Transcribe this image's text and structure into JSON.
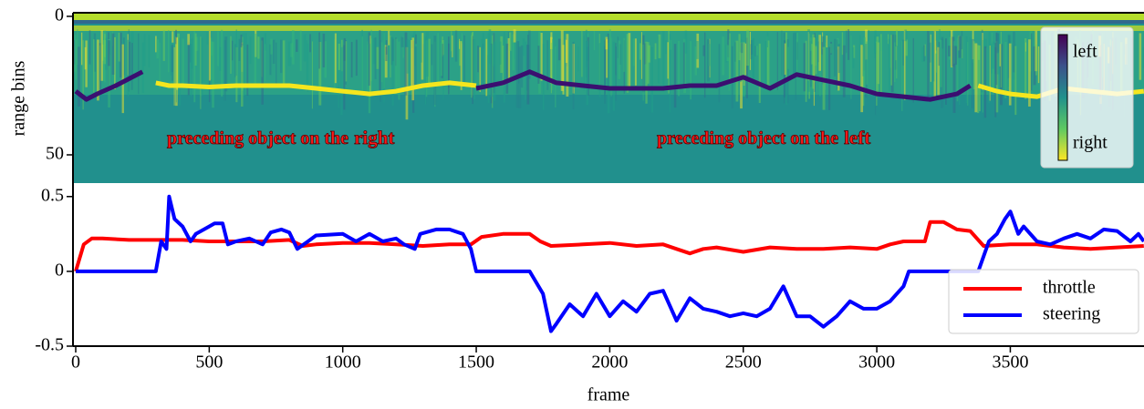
{
  "chart_data": [
    {
      "type": "heatmap",
      "ylabel": "range bins",
      "ylim": [
        60.2,
        -1.3
      ],
      "yticks": [
        0,
        50
      ],
      "xlim": [
        0,
        4000
      ],
      "annotations": [
        {
          "text": "preceding object on the",
          "emphasis": "right"
        },
        {
          "text": "preceding object on the",
          "emphasis": "left"
        }
      ],
      "colorbar": {
        "labels": [
          "left",
          "right"
        ],
        "colors": [
          "#440154",
          "#3b528b",
          "#21918c",
          "#5ec962",
          "#fde725"
        ]
      },
      "series": [
        {
          "color": "#f5e61e",
          "x": [
            300,
            350,
            400,
            500,
            600,
            700,
            800,
            900,
            1000,
            1100,
            1200,
            1300,
            1400,
            1500,
            2400,
            3380,
            3450,
            3500,
            3600,
            3700,
            3800,
            3900,
            4000
          ],
          "values": [
            24,
            25,
            25,
            25.5,
            25,
            25,
            25,
            26,
            27,
            28,
            27,
            25,
            24,
            25,
            null,
            25,
            27,
            28,
            29,
            26,
            27,
            28,
            27
          ]
        },
        {
          "color": "#3b0f70",
          "x": [
            0,
            40,
            80,
            150,
            250,
            800,
            1500,
            1600,
            1700,
            1800,
            1900,
            2000,
            2100,
            2200,
            2300,
            2400,
            2500,
            2600,
            2700,
            2800,
            2900,
            3000,
            3100,
            3200,
            3300,
            3350
          ],
          "values": [
            27,
            30,
            28,
            25,
            20,
            null,
            26,
            24,
            20,
            24,
            25,
            26,
            26,
            26,
            25,
            25,
            22,
            26,
            21,
            23,
            25,
            28,
            29,
            30,
            28,
            25
          ]
        }
      ]
    },
    {
      "type": "line",
      "xlabel": "frame",
      "xlim": [
        0,
        4000
      ],
      "xticks": [
        0,
        500,
        1000,
        1500,
        2000,
        2500,
        3000,
        3500
      ],
      "ylim": [
        -0.5,
        0.59
      ],
      "yticks": [
        0.5,
        0,
        -0.5
      ],
      "series": [
        {
          "name": "throttle",
          "color": "#ff0000",
          "x": [
            0,
            30,
            60,
            100,
            200,
            300,
            400,
            500,
            600,
            700,
            800,
            850,
            900,
            1000,
            1100,
            1200,
            1300,
            1400,
            1480,
            1520,
            1600,
            1700,
            1740,
            1780,
            1900,
            2000,
            2100,
            2200,
            2250,
            2300,
            2350,
            2400,
            2500,
            2600,
            2700,
            2800,
            2900,
            3000,
            3050,
            3100,
            3180,
            3200,
            3250,
            3300,
            3350,
            3400,
            3500,
            3600,
            3700,
            3800,
            3900,
            4000
          ],
          "values": [
            0,
            0.18,
            0.22,
            0.22,
            0.21,
            0.21,
            0.21,
            0.2,
            0.2,
            0.2,
            0.21,
            0.17,
            0.18,
            0.19,
            0.19,
            0.18,
            0.17,
            0.18,
            0.18,
            0.23,
            0.25,
            0.25,
            0.2,
            0.17,
            0.18,
            0.19,
            0.17,
            0.18,
            0.15,
            0.12,
            0.15,
            0.16,
            0.13,
            0.16,
            0.15,
            0.15,
            0.16,
            0.15,
            0.18,
            0.2,
            0.2,
            0.33,
            0.33,
            0.28,
            0.27,
            0.17,
            0.18,
            0.18,
            0.16,
            0.15,
            0.16,
            0.17
          ]
        },
        {
          "name": "steering",
          "color": "#0000ff",
          "x": [
            0,
            300,
            320,
            340,
            350,
            370,
            400,
            430,
            450,
            500,
            520,
            550,
            570,
            600,
            650,
            700,
            730,
            770,
            800,
            830,
            870,
            900,
            1000,
            1050,
            1100,
            1150,
            1200,
            1230,
            1270,
            1290,
            1350,
            1400,
            1450,
            1480,
            1500,
            1700,
            1750,
            1780,
            1800,
            1850,
            1900,
            1950,
            2000,
            2050,
            2100,
            2150,
            2200,
            2250,
            2300,
            2350,
            2400,
            2450,
            2500,
            2550,
            2600,
            2650,
            2700,
            2750,
            2800,
            2850,
            2900,
            2950,
            3000,
            3050,
            3100,
            3120,
            3380,
            3420,
            3450,
            3480,
            3500,
            3530,
            3550,
            3600,
            3650,
            3700,
            3750,
            3800,
            3850,
            3900,
            3950,
            3980,
            4000
          ],
          "values": [
            0,
            0,
            0.2,
            0.15,
            0.5,
            0.35,
            0.3,
            0.2,
            0.25,
            0.3,
            0.32,
            0.32,
            0.18,
            0.2,
            0.22,
            0.18,
            0.26,
            0.28,
            0.26,
            0.15,
            0.2,
            0.24,
            0.25,
            0.2,
            0.25,
            0.2,
            0.22,
            0.18,
            0.15,
            0.25,
            0.28,
            0.28,
            0.25,
            0.15,
            0,
            0,
            -0.15,
            -0.4,
            -0.35,
            -0.22,
            -0.3,
            -0.15,
            -0.3,
            -0.2,
            -0.27,
            -0.15,
            -0.13,
            -0.33,
            -0.18,
            -0.25,
            -0.27,
            -0.3,
            -0.28,
            -0.3,
            -0.25,
            -0.1,
            -0.3,
            -0.3,
            -0.37,
            -0.3,
            -0.2,
            -0.25,
            -0.25,
            -0.2,
            -0.1,
            0,
            0,
            0.2,
            0.25,
            0.35,
            0.4,
            0.25,
            0.3,
            0.2,
            0.18,
            0.22,
            0.25,
            0.22,
            0.28,
            0.27,
            0.2,
            0.25,
            0.2
          ]
        }
      ]
    }
  ]
}
